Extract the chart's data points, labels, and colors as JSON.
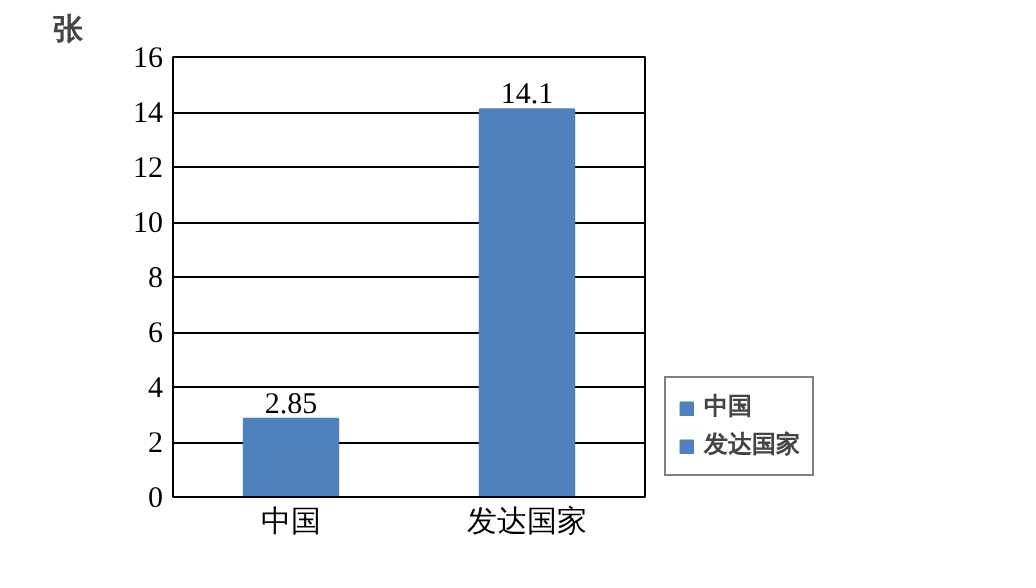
{
  "chart_data": {
    "type": "bar",
    "ylabel": "张",
    "categories": [
      "中国",
      "发达国家"
    ],
    "series": [
      {
        "name": "中国",
        "color": "#4f81bd",
        "values": [
          2.85,
          null
        ]
      },
      {
        "name": "发达国家",
        "color": "#4f81bd",
        "values": [
          null,
          14.1
        ]
      }
    ],
    "ylim": [
      0,
      16
    ],
    "yticks": [
      0,
      2,
      4,
      6,
      8,
      10,
      12,
      14,
      16
    ],
    "grid": "y",
    "data_labels": true,
    "legend": "bottom right"
  }
}
